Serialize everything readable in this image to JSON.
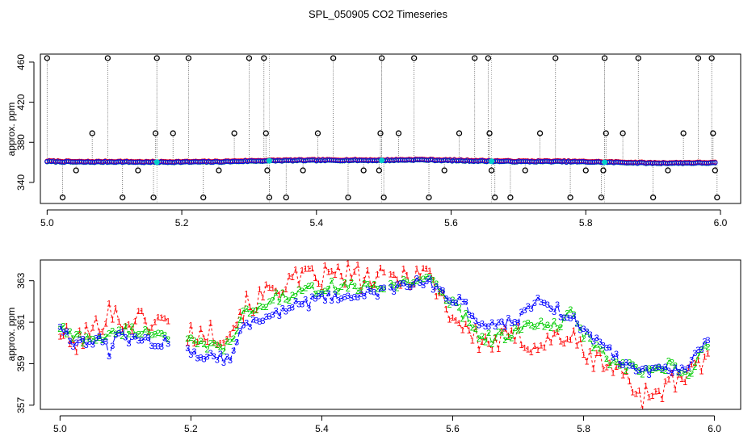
{
  "chart_data": [
    {
      "type": "scatter",
      "title": "SPL_050905  CO2 Timeseries",
      "xlabel": "",
      "ylabel": "approx. ppm",
      "xlim": [
        4.99,
        6.03
      ],
      "ylim": [
        319,
        468
      ],
      "x_ticks": [
        {
          "value": 5.0,
          "label": "5.0"
        },
        {
          "value": 5.2,
          "label": "5.2"
        },
        {
          "value": 5.4,
          "label": "5.4"
        },
        {
          "value": 5.6,
          "label": "5.6"
        },
        {
          "value": 5.8,
          "label": "5.8"
        },
        {
          "value": 6.0,
          "label": "6.0"
        }
      ],
      "y_ticks": [
        {
          "value": 340,
          "label": "340"
        },
        {
          "value": 380,
          "label": "380"
        },
        {
          "value": 420,
          "label": "420"
        },
        {
          "value": 460,
          "label": "460"
        }
      ],
      "baseline": [
        [
          5.0,
          361.0
        ],
        [
          5.05,
          360.3
        ],
        [
          5.1,
          360.6
        ],
        [
          5.15,
          360.2
        ],
        [
          5.2,
          360.4
        ],
        [
          5.25,
          360.5
        ],
        [
          5.3,
          361.3
        ],
        [
          5.35,
          361.8
        ],
        [
          5.4,
          362.0
        ],
        [
          5.45,
          362.1
        ],
        [
          5.5,
          362.0
        ],
        [
          5.55,
          362.6
        ],
        [
          5.6,
          361.9
        ],
        [
          5.65,
          361.3
        ],
        [
          5.7,
          360.8
        ],
        [
          5.75,
          360.9
        ],
        [
          5.8,
          360.5
        ],
        [
          5.85,
          360.0
        ],
        [
          5.9,
          359.2
        ],
        [
          5.95,
          359.4
        ],
        [
          6.0,
          359.5
        ]
      ],
      "outliers": [
        {
          "x": 5.0,
          "y": 470
        },
        {
          "x": 5.023,
          "y": 325
        },
        {
          "x": 5.043,
          "y": 352
        },
        {
          "x": 5.067,
          "y": 389
        },
        {
          "x": 5.09,
          "y": 465
        },
        {
          "x": 5.112,
          "y": 325
        },
        {
          "x": 5.135,
          "y": 352
        },
        {
          "x": 5.158,
          "y": 325
        },
        {
          "x": 5.161,
          "y": 389
        },
        {
          "x": 5.163,
          "y": 465
        },
        {
          "x": 5.187,
          "y": 389
        },
        {
          "x": 5.21,
          "y": 465
        },
        {
          "x": 5.232,
          "y": 325
        },
        {
          "x": 5.255,
          "y": 352
        },
        {
          "x": 5.278,
          "y": 389
        },
        {
          "x": 5.3,
          "y": 465
        },
        {
          "x": 5.322,
          "y": 465
        },
        {
          "x": 5.325,
          "y": 389
        },
        {
          "x": 5.327,
          "y": 352
        },
        {
          "x": 5.33,
          "y": 325
        },
        {
          "x": 5.355,
          "y": 325
        },
        {
          "x": 5.38,
          "y": 352
        },
        {
          "x": 5.402,
          "y": 389
        },
        {
          "x": 5.425,
          "y": 465
        },
        {
          "x": 5.447,
          "y": 325
        },
        {
          "x": 5.47,
          "y": 352
        },
        {
          "x": 5.493,
          "y": 352
        },
        {
          "x": 5.495,
          "y": 389
        },
        {
          "x": 5.497,
          "y": 465
        },
        {
          "x": 5.5,
          "y": 325
        },
        {
          "x": 5.522,
          "y": 389
        },
        {
          "x": 5.545,
          "y": 465
        },
        {
          "x": 5.567,
          "y": 325
        },
        {
          "x": 5.59,
          "y": 352
        },
        {
          "x": 5.612,
          "y": 389
        },
        {
          "x": 5.635,
          "y": 465
        },
        {
          "x": 5.655,
          "y": 465
        },
        {
          "x": 5.657,
          "y": 389
        },
        {
          "x": 5.66,
          "y": 352
        },
        {
          "x": 5.665,
          "y": 325
        },
        {
          "x": 5.688,
          "y": 325
        },
        {
          "x": 5.71,
          "y": 352
        },
        {
          "x": 5.732,
          "y": 389
        },
        {
          "x": 5.755,
          "y": 465
        },
        {
          "x": 5.777,
          "y": 325
        },
        {
          "x": 5.8,
          "y": 352
        },
        {
          "x": 5.823,
          "y": 325
        },
        {
          "x": 5.826,
          "y": 352
        },
        {
          "x": 5.828,
          "y": 465
        },
        {
          "x": 5.83,
          "y": 389
        },
        {
          "x": 5.855,
          "y": 389
        },
        {
          "x": 5.878,
          "y": 465
        },
        {
          "x": 5.9,
          "y": 325
        },
        {
          "x": 5.922,
          "y": 352
        },
        {
          "x": 5.945,
          "y": 389
        },
        {
          "x": 5.967,
          "y": 465
        },
        {
          "x": 5.987,
          "y": 465
        },
        {
          "x": 5.989,
          "y": 389
        },
        {
          "x": 5.992,
          "y": 352
        },
        {
          "x": 5.995,
          "y": 325
        }
      ],
      "series": [
        {
          "name": "1",
          "color": "#ff0000"
        },
        {
          "name": "2",
          "color": "#00cd00"
        },
        {
          "name": "3",
          "color": "#0000ff"
        }
      ],
      "highlight_color": "#00cdcd",
      "outlier_color": "#000000",
      "gap_segments": [
        [
          5.163,
          5.165
        ],
        [
          5.33,
          5.332
        ],
        [
          5.497,
          5.499
        ],
        [
          5.66,
          5.662
        ],
        [
          5.828,
          5.83
        ]
      ]
    },
    {
      "type": "line",
      "title": "",
      "xlabel": "",
      "ylabel": "approx. ppm",
      "xlim": [
        4.97,
        6.04
      ],
      "ylim": [
        356.8,
        364.0
      ],
      "x_ticks": [
        {
          "value": 5.0,
          "label": "5.0"
        },
        {
          "value": 5.2,
          "label": "5.2"
        },
        {
          "value": 5.4,
          "label": "5.4"
        },
        {
          "value": 5.6,
          "label": "5.6"
        },
        {
          "value": 5.8,
          "label": "5.8"
        },
        {
          "value": 6.0,
          "label": "6.0"
        }
      ],
      "y_ticks": [
        {
          "value": 357,
          "label": "357"
        },
        {
          "value": 359,
          "label": "359"
        },
        {
          "value": 361,
          "label": "361"
        },
        {
          "value": 363,
          "label": "363"
        }
      ],
      "x_range": [
        5.0,
        5.99
      ],
      "gaps": [
        [
          5.165,
          5.19
        ],
        [
          5.497,
          5.5
        ]
      ],
      "series": [
        {
          "name": "1",
          "label": "1",
          "color": "#ff0000",
          "dash": "3,3",
          "offset": 0.55,
          "anchors": [
            [
              5.0,
              360.6
            ],
            [
              5.02,
              359.9
            ],
            [
              5.04,
              360.4
            ],
            [
              5.06,
              360.8
            ],
            [
              5.075,
              361.8
            ],
            [
              5.09,
              361.0
            ],
            [
              5.12,
              361.1
            ],
            [
              5.16,
              361.0
            ],
            [
              5.19,
              360.5
            ],
            [
              5.22,
              360.4
            ],
            [
              5.26,
              360.6
            ],
            [
              5.28,
              361.7
            ],
            [
              5.31,
              362.2
            ],
            [
              5.33,
              362.8
            ],
            [
              5.36,
              363.0
            ],
            [
              5.4,
              363.2
            ],
            [
              5.44,
              363.3
            ],
            [
              5.48,
              363.0
            ],
            [
              5.52,
              363.2
            ],
            [
              5.56,
              363.5
            ],
            [
              5.58,
              362.4
            ],
            [
              5.6,
              361.3
            ],
            [
              5.62,
              360.7
            ],
            [
              5.64,
              360.1
            ],
            [
              5.66,
              360.0
            ],
            [
              5.7,
              360.3
            ],
            [
              5.73,
              359.9
            ],
            [
              5.76,
              360.3
            ],
            [
              5.78,
              360.4
            ],
            [
              5.8,
              359.4
            ],
            [
              5.84,
              359.0
            ],
            [
              5.87,
              358.2
            ],
            [
              5.89,
              357.4
            ],
            [
              5.93,
              358.0
            ],
            [
              5.96,
              358.4
            ],
            [
              5.99,
              359.2
            ]
          ]
        },
        {
          "name": "2",
          "label": "2",
          "color": "#00cd00",
          "dash": "6,3",
          "offset": 0.25,
          "anchors": [
            [
              5.0,
              360.8
            ],
            [
              5.02,
              360.3
            ],
            [
              5.04,
              360.2
            ],
            [
              5.06,
              360.3
            ],
            [
              5.075,
              360.3
            ],
            [
              5.09,
              360.6
            ],
            [
              5.12,
              360.6
            ],
            [
              5.16,
              360.5
            ],
            [
              5.19,
              360.1
            ],
            [
              5.22,
              359.8
            ],
            [
              5.26,
              359.9
            ],
            [
              5.28,
              361.4
            ],
            [
              5.31,
              361.8
            ],
            [
              5.33,
              362.2
            ],
            [
              5.36,
              362.3
            ],
            [
              5.4,
              362.7
            ],
            [
              5.44,
              362.8
            ],
            [
              5.48,
              362.6
            ],
            [
              5.52,
              362.9
            ],
            [
              5.56,
              363.2
            ],
            [
              5.58,
              362.5
            ],
            [
              5.6,
              361.9
            ],
            [
              5.62,
              361.3
            ],
            [
              5.64,
              360.4
            ],
            [
              5.66,
              360.2
            ],
            [
              5.7,
              360.6
            ],
            [
              5.73,
              360.9
            ],
            [
              5.76,
              360.8
            ],
            [
              5.78,
              361.4
            ],
            [
              5.8,
              360.5
            ],
            [
              5.84,
              359.1
            ],
            [
              5.87,
              358.8
            ],
            [
              5.89,
              358.6
            ],
            [
              5.93,
              358.9
            ],
            [
              5.96,
              358.4
            ],
            [
              5.99,
              360.0
            ]
          ]
        },
        {
          "name": "3",
          "label": "3",
          "color": "#0000ff",
          "dash": "8,3",
          "offset": 0.25,
          "anchors": [
            [
              5.0,
              360.9
            ],
            [
              5.02,
              360.1
            ],
            [
              5.04,
              359.9
            ],
            [
              5.06,
              360.3
            ],
            [
              5.075,
              359.6
            ],
            [
              5.09,
              360.4
            ],
            [
              5.12,
              360.1
            ],
            [
              5.16,
              360.0
            ],
            [
              5.19,
              359.8
            ],
            [
              5.22,
              359.4
            ],
            [
              5.26,
              359.3
            ],
            [
              5.28,
              360.8
            ],
            [
              5.31,
              361.2
            ],
            [
              5.33,
              361.5
            ],
            [
              5.36,
              361.8
            ],
            [
              5.4,
              362.1
            ],
            [
              5.44,
              362.3
            ],
            [
              5.48,
              362.4
            ],
            [
              5.52,
              362.7
            ],
            [
              5.56,
              363.0
            ],
            [
              5.58,
              362.6
            ],
            [
              5.6,
              362.1
            ],
            [
              5.62,
              361.8
            ],
            [
              5.64,
              361.0
            ],
            [
              5.66,
              360.8
            ],
            [
              5.7,
              361.2
            ],
            [
              5.73,
              362.2
            ],
            [
              5.76,
              361.6
            ],
            [
              5.78,
              361.2
            ],
            [
              5.8,
              360.7
            ],
            [
              5.84,
              359.6
            ],
            [
              5.87,
              358.9
            ],
            [
              5.89,
              358.7
            ],
            [
              5.93,
              358.8
            ],
            [
              5.96,
              358.9
            ],
            [
              5.99,
              360.1
            ]
          ]
        }
      ]
    }
  ]
}
